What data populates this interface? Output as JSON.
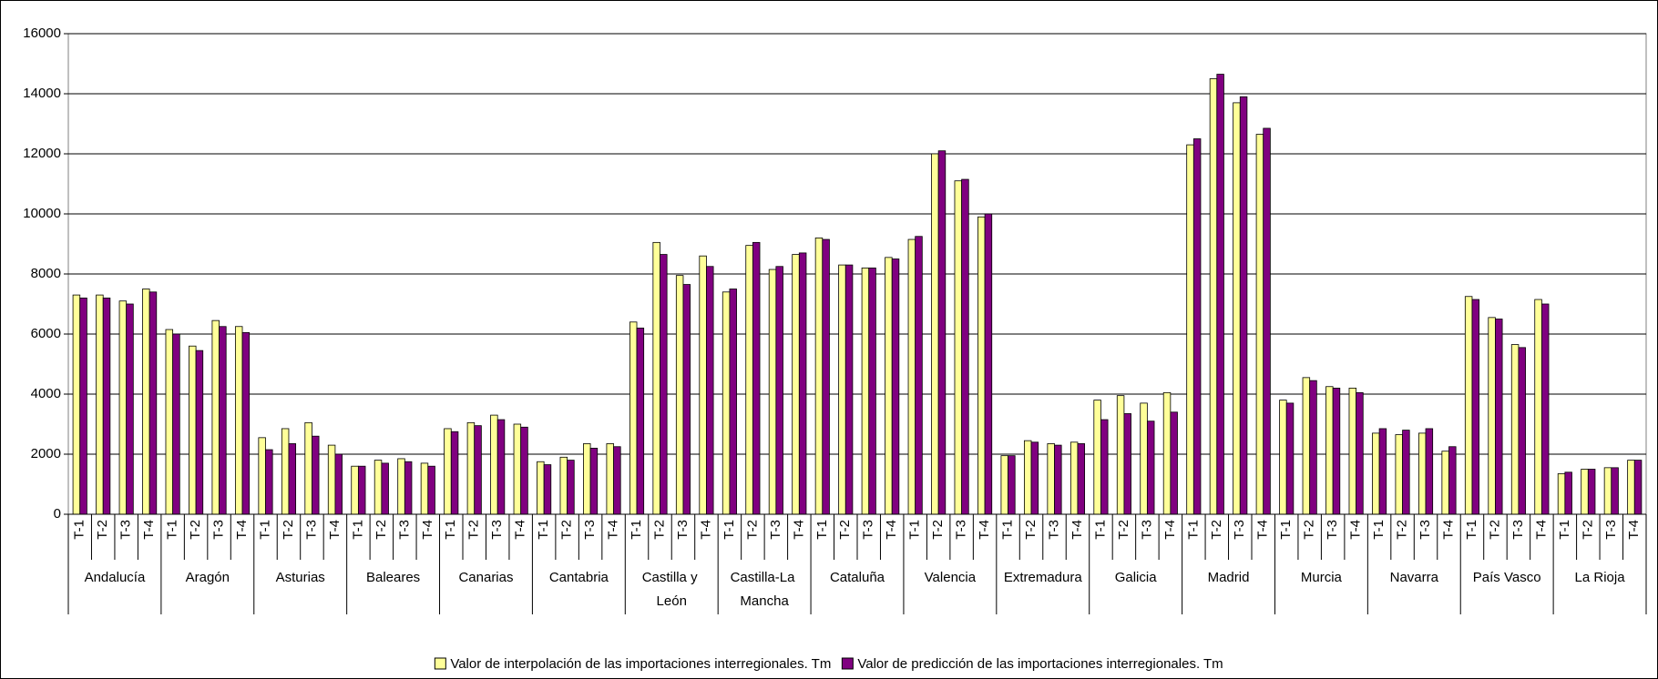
{
  "chart_data": {
    "type": "bar",
    "categories": [
      "T-1",
      "T-2",
      "T-3",
      "T-4",
      "T-1",
      "T-2",
      "T-3",
      "T-4",
      "T-1",
      "T-2",
      "T-3",
      "T-4",
      "T-1",
      "T-2",
      "T-3",
      "T-4",
      "T-1",
      "T-2",
      "T-3",
      "T-4",
      "T-1",
      "T-2",
      "T-3",
      "T-4",
      "T-1",
      "T-2",
      "T-3",
      "T-4",
      "T-1",
      "T-2",
      "T-3",
      "T-4",
      "T-1",
      "T-2",
      "T-3",
      "T-4",
      "T-1",
      "T-2",
      "T-3",
      "T-4",
      "T-1",
      "T-2",
      "T-3",
      "T-4",
      "T-1",
      "T-2",
      "T-3",
      "T-4",
      "T-1",
      "T-2",
      "T-3",
      "T-4",
      "T-1",
      "T-2",
      "T-3",
      "T-4",
      "T-1",
      "T-2",
      "T-3",
      "T-4",
      "T-1",
      "T-2",
      "T-3",
      "T-4",
      "T-1",
      "T-2",
      "T-3",
      "T-4"
    ],
    "groups": [
      "Andalucía",
      "Aragón",
      "Asturias",
      "Baleares",
      "Canarias",
      "Cantabria",
      "Castilla y León",
      "Castilla-La Mancha",
      "Cataluña",
      "Valencia",
      "Extremadura",
      "Galicia",
      "Madrid",
      "Murcia",
      "Navarra",
      "País Vasco",
      "La Rioja"
    ],
    "series": [
      {
        "name": "Valor de interpolación de las importaciones interregionales. Tm",
        "color": "#ffff99",
        "values": [
          7300,
          7300,
          7100,
          7500,
          6150,
          5600,
          6450,
          6250,
          2550,
          2850,
          3050,
          2300,
          1600,
          1800,
          1850,
          1700,
          2850,
          3050,
          3300,
          3000,
          1750,
          1900,
          2350,
          2350,
          6400,
          9050,
          7950,
          8600,
          7400,
          8950,
          8150,
          8650,
          9200,
          8300,
          8200,
          8550,
          9150,
          12000,
          11100,
          9900,
          1950,
          2450,
          2350,
          2400,
          3800,
          3950,
          3700,
          4050,
          12300,
          14500,
          13700,
          12650,
          3800,
          4550,
          4250,
          4200,
          2700,
          2650,
          2700,
          2100,
          7250,
          6550,
          5650,
          7150,
          1350,
          1500,
          1550,
          1800
        ]
      },
      {
        "name": "Valor de predicción de las importaciones interregionales. Tm",
        "color": "#800080",
        "values": [
          7200,
          7200,
          7000,
          7400,
          6000,
          5450,
          6250,
          6050,
          2150,
          2350,
          2600,
          2000,
          1600,
          1700,
          1750,
          1600,
          2750,
          2950,
          3150,
          2900,
          1650,
          1800,
          2200,
          2250,
          6200,
          8650,
          7650,
          8250,
          7500,
          9050,
          8250,
          8700,
          9150,
          8300,
          8200,
          8500,
          9250,
          12100,
          11150,
          10000,
          1950,
          2400,
          2300,
          2350,
          3150,
          3350,
          3100,
          3400,
          12500,
          14650,
          13900,
          12850,
          3700,
          4450,
          4200,
          4050,
          2850,
          2800,
          2850,
          2250,
          7150,
          6500,
          5550,
          7000,
          1400,
          1500,
          1550,
          1800
        ]
      }
    ],
    "ylim": [
      0,
      16000
    ],
    "yticks": [
      0,
      2000,
      4000,
      6000,
      8000,
      10000,
      12000,
      14000,
      16000
    ],
    "grid": true
  }
}
